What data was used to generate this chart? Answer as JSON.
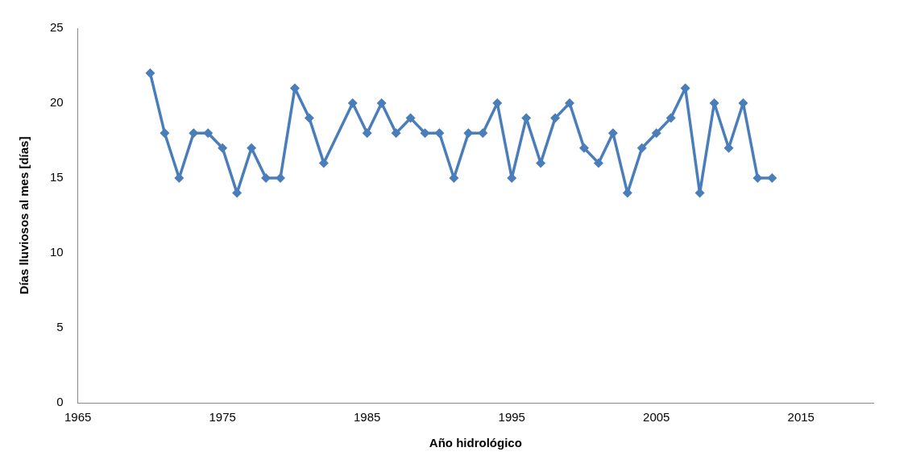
{
  "chart_data": {
    "type": "line",
    "xlabel": "Año hidrológico",
    "ylabel": "Días lluviosos al mes [días]",
    "x": [
      1970,
      1971,
      1972,
      1973,
      1974,
      1975,
      1976,
      1977,
      1978,
      1979,
      1980,
      1981,
      1982,
      1984,
      1985,
      1986,
      1987,
      1988,
      1989,
      1990,
      1991,
      1992,
      1993,
      1994,
      1995,
      1996,
      1997,
      1998,
      1999,
      2000,
      2001,
      2002,
      2003,
      2004,
      2005,
      2006,
      2007,
      2008,
      2009,
      2010,
      2011,
      2012,
      2013
    ],
    "series": [
      {
        "color": "#4a7ebb",
        "values": [
          22,
          18,
          15,
          18,
          18,
          17,
          14,
          17,
          15,
          15,
          21,
          19,
          16,
          20,
          18,
          20,
          18,
          19,
          18,
          18,
          15,
          18,
          18,
          20,
          15,
          19,
          16,
          19,
          20,
          17,
          16,
          18,
          14,
          17,
          18,
          19,
          21,
          14,
          20,
          17,
          20,
          15,
          15
        ]
      }
    ],
    "xlim": [
      1965,
      2020
    ],
    "xticks": [
      1965,
      1975,
      1985,
      1995,
      2005,
      2015
    ],
    "ylim": [
      0,
      25
    ],
    "yticks": [
      0,
      5,
      10,
      15,
      20,
      25
    ],
    "grid": false,
    "legend": false,
    "marker": "diamond",
    "line_style": "solid"
  }
}
